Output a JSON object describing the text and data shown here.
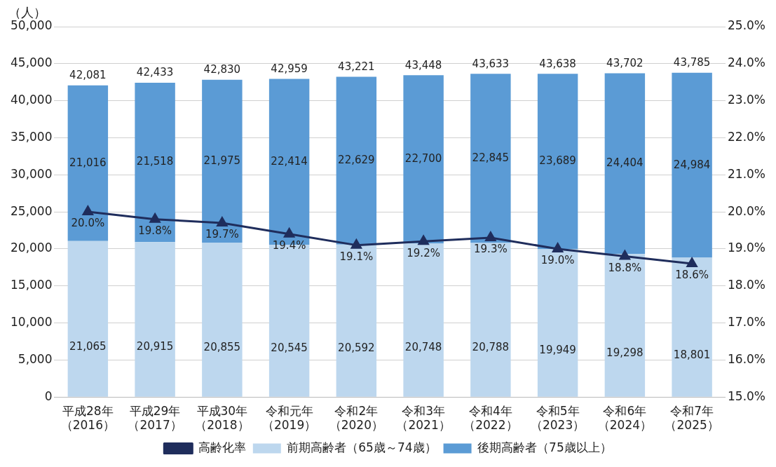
{
  "chart_data": {
    "type": "bar",
    "ylabel": "（人）",
    "stacked": true,
    "categories": [
      "平成28年（2016）",
      "平成29年（2017）",
      "平成30年（2018）",
      "令和元年（2019）",
      "令和2年（2020）",
      "令和3年（2021）",
      "令和4年（2022）",
      "令和5年（2023）",
      "令和6年（2024）",
      "令和7年（2025）"
    ],
    "series": [
      {
        "name": "前期高齢者（65歳～74歳）",
        "color": "#bdd7ee",
        "values": [
          21065,
          20915,
          20855,
          20545,
          20592,
          20748,
          20788,
          19949,
          19298,
          18801
        ],
        "value_labels": [
          "21,065",
          "20,915",
          "20,855",
          "20,545",
          "20,592",
          "20,748",
          "20,788",
          "19,949",
          "19,298",
          "18,801"
        ]
      },
      {
        "name": "後期高齢者（75歳以上）",
        "color": "#5b9bd5",
        "values": [
          21016,
          21518,
          21975,
          22414,
          22629,
          22700,
          22845,
          23689,
          24404,
          24984
        ],
        "value_labels": [
          "21,016",
          "21,518",
          "21,975",
          "22,414",
          "22,629",
          "22,700",
          "22,845",
          "23,689",
          "24,404",
          "24,984"
        ]
      },
      {
        "name": "高齢化率",
        "type": "line",
        "axis": "y2",
        "color": "#1f2d5c",
        "marker": "triangle",
        "values": [
          20.0,
          19.8,
          19.7,
          19.4,
          19.1,
          19.2,
          19.3,
          19.0,
          18.8,
          18.6
        ],
        "value_labels": [
          "20.0%",
          "19.8%",
          "19.7%",
          "19.4%",
          "19.1%",
          "19.2%",
          "19.3%",
          "19.0%",
          "18.8%",
          "18.6%"
        ]
      }
    ],
    "totals": [
      "42,081",
      "42,433",
      "42,830",
      "42,959",
      "43,221",
      "43,448",
      "43,633",
      "43,638",
      "43,702",
      "43,785"
    ],
    "ylim": [
      0,
      50000
    ],
    "yticks": [
      0,
      {
        "value": 5000,
        "label": "5,000"
      },
      {
        "value": 10000,
        "label": "10,000"
      },
      {
        "value": 15000,
        "label": "15,000"
      },
      {
        "value": 20000,
        "label": "20,000"
      },
      {
        "value": 25000,
        "label": "25,000"
      },
      {
        "value": 30000,
        "label": "30,000"
      },
      {
        "value": 35000,
        "label": "35,000"
      },
      {
        "value": 40000,
        "label": "40,000"
      },
      {
        "value": 45000,
        "label": "45,000"
      },
      {
        "value": 50000,
        "label": "50,000"
      }
    ],
    "y2lim": [
      15,
      25
    ],
    "y2ticks": [
      {
        "value": 15,
        "label": "15.0%"
      },
      {
        "value": 16,
        "label": "16.0%"
      },
      {
        "value": 17,
        "label": "17.0%"
      },
      {
        "value": 18,
        "label": "18.0%"
      },
      {
        "value": 19,
        "label": "19.0%"
      },
      {
        "value": 20,
        "label": "20.0%"
      },
      {
        "value": 21,
        "label": "21.0%"
      },
      {
        "value": 22,
        "label": "22.0%"
      },
      {
        "value": 23,
        "label": "23.0%"
      },
      {
        "value": 24,
        "label": "24.0%"
      },
      {
        "value": 25,
        "label": "25.0%"
      }
    ],
    "grid": "y",
    "legend": "bottom"
  }
}
